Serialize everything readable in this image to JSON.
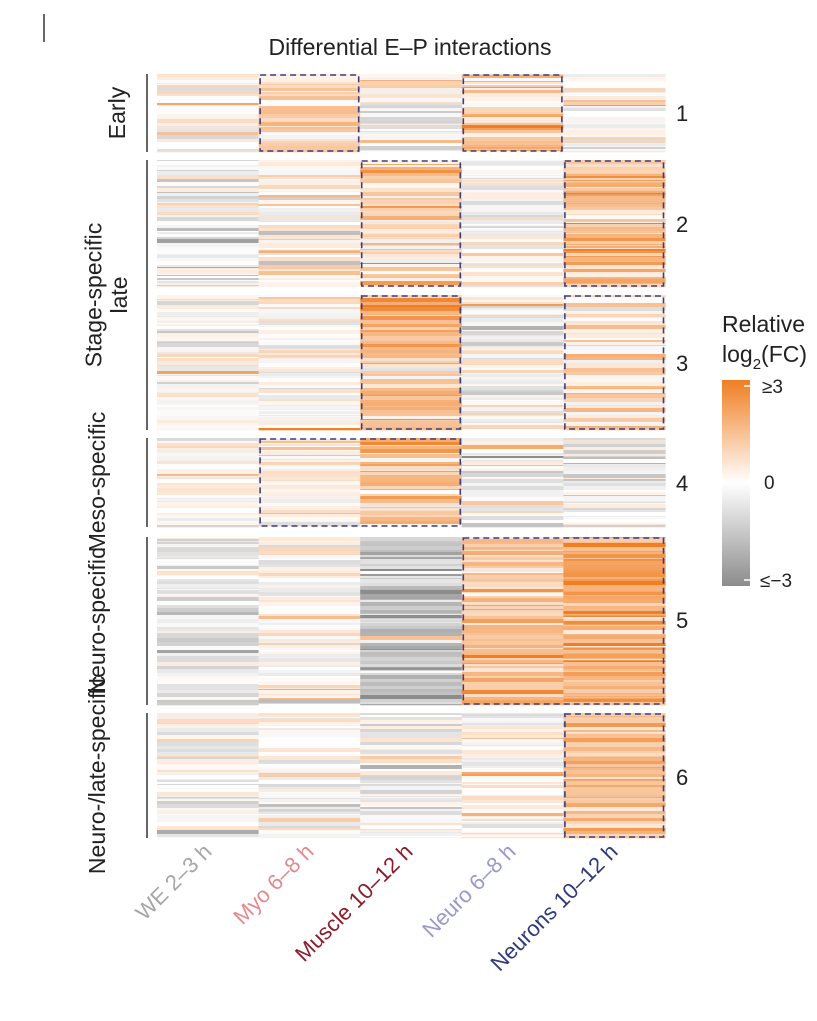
{
  "chart_data": {
    "type": "heatmap",
    "title": "Differential E–P interactions",
    "columns": [
      "WE 2–3 h",
      "Myo 6–8 h",
      "Muscle 10–12 h",
      "Neuro 6–8 h",
      "Neurons 10–12 h"
    ],
    "column_colors": [
      "#a6a6a6",
      "#e38a8e",
      "#8b1c2c",
      "#9a99cc",
      "#2e3a7c"
    ],
    "groups": [
      {
        "label": "Early",
        "clusters": [
          1
        ]
      },
      {
        "label": "Stage-specific late",
        "clusters": [
          2,
          3
        ]
      },
      {
        "label": "Meso-specific",
        "clusters": [
          4
        ]
      },
      {
        "label": "Neuro-specific",
        "clusters": [
          5
        ]
      },
      {
        "label": "Neuro-/late-specific",
        "clusters": [
          6
        ]
      }
    ],
    "clusters": [
      {
        "id": "1",
        "mean_log2fc": [
          0.1,
          0.9,
          0.0,
          0.8,
          0.1
        ],
        "highlighted": [
          false,
          true,
          false,
          true,
          false
        ]
      },
      {
        "id": "2",
        "mean_log2fc": [
          -0.4,
          0.3,
          0.9,
          -0.1,
          1.4
        ],
        "highlighted": [
          false,
          false,
          true,
          false,
          true
        ]
      },
      {
        "id": "3",
        "mean_log2fc": [
          -0.2,
          0.0,
          1.6,
          -0.1,
          0.6
        ],
        "highlighted": [
          false,
          false,
          true,
          false,
          true
        ]
      },
      {
        "id": "4",
        "mean_log2fc": [
          0.1,
          0.6,
          1.3,
          -0.2,
          -0.3
        ],
        "highlighted": [
          false,
          true,
          true,
          false,
          false
        ]
      },
      {
        "id": "5",
        "mean_log2fc": [
          -0.6,
          0.2,
          -1.5,
          1.3,
          1.9
        ],
        "highlighted": [
          false,
          false,
          false,
          true,
          true
        ]
      },
      {
        "id": "6",
        "mean_log2fc": [
          -0.2,
          -0.1,
          -0.1,
          0.0,
          1.4
        ],
        "highlighted": [
          false,
          false,
          false,
          false,
          true
        ]
      }
    ],
    "colorbar": {
      "title_line1": "Relative",
      "title_line2_prefix": "log",
      "title_line2_sub": "2",
      "title_line2_suffix": "(FC)",
      "range": [
        -3,
        3
      ],
      "tick_labels": {
        "max": "≥3",
        "mid": "0",
        "min": "≤−3"
      },
      "low_color": "#8c8c8c",
      "mid_color": "#ffffff",
      "high_color": "#f07e22"
    }
  },
  "colors": {
    "box": "#3a3f82",
    "axis": "#333333"
  }
}
